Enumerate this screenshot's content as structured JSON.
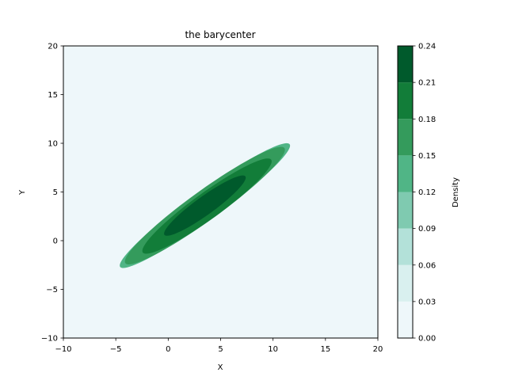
{
  "chart_data": {
    "type": "contourf",
    "title": "the barycenter",
    "xlabel": "X",
    "ylabel": "Y",
    "xlim": [
      -10,
      20
    ],
    "ylim": [
      -10,
      20
    ],
    "xticks": [
      -10,
      -5,
      0,
      5,
      10,
      15,
      20
    ],
    "xtick_labels": [
      "−10",
      "−5",
      "0",
      "5",
      "10",
      "15",
      "20"
    ],
    "yticks": [
      -10,
      -5,
      0,
      5,
      10,
      15,
      20
    ],
    "ytick_labels": [
      "−10",
      "−5",
      "0",
      "5",
      "10",
      "15",
      "20"
    ],
    "colorbar": {
      "label": "Density",
      "levels": [
        0.0,
        0.03,
        0.06,
        0.09,
        0.12,
        0.15,
        0.18,
        0.21,
        0.24
      ],
      "tick_labels": [
        "0.00",
        "0.03",
        "0.06",
        "0.09",
        "0.12",
        "0.15",
        "0.18",
        "0.21",
        "0.24"
      ],
      "colors": [
        "#eef7fa",
        "#d9f0ef",
        "#b3e1d9",
        "#7fcab0",
        "#50b586",
        "#349b5c",
        "#127d39",
        "#005a2c"
      ]
    },
    "distribution": {
      "mean": [
        3.7,
        3.5
      ],
      "major_axis_angle_deg": 38,
      "sigma_major": 5.8,
      "sigma_minor": 0.8
    },
    "contour_regions": [
      {
        "level_min": 0.12,
        "level_max": 0.15,
        "color": "#50b586",
        "extent_x": [
          -5,
          12
        ],
        "extent_y": [
          -2.4,
          9.6
        ]
      },
      {
        "level_min": 0.15,
        "level_max": 0.18,
        "color": "#349b5c",
        "extent_x": [
          -4.5,
          11.5
        ],
        "extent_y": [
          -2.0,
          9.2
        ]
      },
      {
        "level_min": 0.18,
        "level_max": 0.21,
        "color": "#127d39",
        "extent_x": [
          -2.8,
          10.2
        ],
        "extent_y": [
          -0.9,
          8.0
        ]
      },
      {
        "level_min": 0.21,
        "level_max": 0.24,
        "color": "#005a2c",
        "extent_x": [
          -0.6,
          7.6
        ],
        "extent_y": [
          0.8,
          6.4
        ]
      }
    ],
    "background_color": "#eef7fa",
    "grid": false
  }
}
